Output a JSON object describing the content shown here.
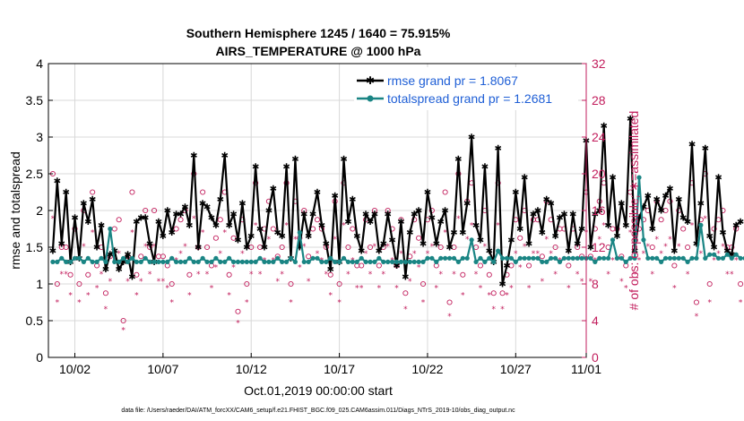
{
  "chart_data": {
    "type": "line",
    "title_line1": "Southern Hemisphere 1245 / 1640 = 75.915%",
    "title_line2": "AIRS_TEMPERATURE @ 1000 hPa",
    "xlabel": "Oct.01,2019 00:00:00 start",
    "ylabel_left": "rmse and totalspread",
    "ylabel_right": "# of obs: o=possible; ∗=assimilated",
    "footnote": "data file: /Users/raeder/DAI/ATM_forcXX/CAM6_setup/f.e21.FHIST_BGC.f09_025.CAM6assim.011/Diags_NTrS_2019-10/obs_diag_output.nc",
    "x_range_days": [
      0.5,
      31.0
    ],
    "x_ticks": [
      {
        "day": 2,
        "label": "10/02"
      },
      {
        "day": 7,
        "label": "10/07"
      },
      {
        "day": 12,
        "label": "10/12"
      },
      {
        "day": 17,
        "label": "10/17"
      },
      {
        "day": 22,
        "label": "10/22"
      },
      {
        "day": 27,
        "label": "10/27"
      },
      {
        "day": 31,
        "label": "11/01"
      }
    ],
    "ylim_left": [
      0,
      4
    ],
    "y_ticks_left": [
      "0",
      "0.5",
      "1",
      "1.5",
      "2",
      "2.5",
      "3",
      "3.5",
      "4"
    ],
    "ylim_right": [
      0,
      32
    ],
    "y_ticks_right": [
      "0",
      "4",
      "8",
      "12",
      "16",
      "20",
      "24",
      "28",
      "32"
    ],
    "legend": [
      {
        "label": "rmse grand pr = 1.8067",
        "color": "#000000"
      },
      {
        "label": "totalspread grand pr = 1.2681",
        "color": "#1a8584"
      }
    ],
    "time_step_days": 0.25,
    "start_day": 0.75,
    "series": [
      {
        "name": "rmse",
        "color": "#000000",
        "marker": "star",
        "values": [
          1.45,
          2.4,
          1.55,
          2.25,
          1.3,
          1.9,
          1.35,
          2.1,
          1.85,
          2.15,
          1.5,
          1.8,
          1.2,
          1.4,
          1.45,
          1.2,
          1.3,
          1.4,
          1.1,
          1.85,
          1.9,
          1.9,
          1.55,
          1.3,
          1.85,
          1.65,
          2.0,
          1.7,
          1.95,
          1.95,
          2.05,
          1.8,
          2.75,
          1.5,
          2.1,
          2.05,
          1.9,
          1.8,
          2.15,
          2.75,
          1.8,
          1.95,
          1.6,
          2.1,
          1.5,
          1.65,
          2.6,
          1.75,
          1.5,
          2.0,
          2.3,
          1.7,
          1.65,
          2.6,
          1.35,
          2.7,
          1.5,
          1.95,
          1.65,
          1.95,
          2.25,
          1.8,
          1.55,
          1.2,
          2.2,
          1.3,
          2.7,
          1.85,
          2.15,
          1.65,
          1.45,
          1.95,
          1.85,
          1.95,
          1.45,
          1.55,
          1.95,
          1.6,
          1.25,
          1.85,
          1.1,
          1.7,
          1.95,
          2.0,
          1.55,
          2.25,
          1.9,
          1.55,
          1.85,
          2.0,
          1.5,
          1.7,
          2.7,
          1.7,
          2.1,
          3.0,
          1.8,
          1.6,
          2.6,
          1.45,
          1.3,
          2.85,
          1.0,
          1.25,
          1.6,
          2.25,
          1.75,
          2.45,
          1.55,
          1.95,
          2.0,
          1.7,
          2.15,
          2.1,
          1.65,
          1.9,
          1.95,
          1.45,
          1.95,
          1.55,
          1.75,
          2.95,
          1.5,
          1.95,
          2.0,
          3.15,
          1.8,
          2.45,
          1.65,
          2.1,
          1.8,
          3.25,
          1.45,
          1.9,
          2.05,
          2.2,
          1.75,
          2.15,
          2.0,
          2.2,
          2.3,
          1.45,
          2.15,
          1.9,
          1.85,
          2.9,
          1.55,
          2.1,
          2.85,
          1.65,
          1.5,
          2.45,
          1.7,
          1.45,
          1.4,
          1.8,
          1.85
        ]
      },
      {
        "name": "totalspread",
        "color": "#1a8584",
        "marker": "dot",
        "values": [
          1.3,
          1.3,
          1.35,
          1.3,
          1.3,
          1.35,
          1.35,
          1.3,
          1.35,
          1.3,
          1.3,
          1.35,
          1.3,
          1.75,
          1.3,
          1.3,
          1.35,
          1.3,
          1.35,
          1.3,
          1.3,
          1.35,
          1.3,
          1.3,
          1.3,
          1.3,
          1.3,
          1.35,
          1.3,
          1.3,
          1.3,
          1.35,
          1.3,
          1.3,
          1.35,
          1.3,
          1.3,
          1.35,
          1.3,
          1.3,
          1.35,
          1.3,
          1.3,
          1.3,
          1.3,
          1.3,
          1.3,
          1.35,
          1.3,
          1.3,
          1.3,
          1.35,
          1.3,
          1.3,
          1.35,
          1.3,
          1.7,
          1.3,
          1.3,
          1.35,
          1.35,
          1.3,
          1.3,
          1.35,
          1.3,
          1.3,
          1.35,
          1.3,
          1.3,
          1.3,
          1.35,
          1.3,
          1.3,
          1.3,
          1.35,
          1.3,
          1.3,
          1.3,
          1.3,
          1.3,
          1.3,
          1.3,
          1.3,
          1.3,
          1.3,
          1.35,
          1.35,
          1.3,
          1.35,
          1.35,
          1.35,
          1.35,
          1.3,
          1.35,
          1.35,
          1.6,
          1.3,
          1.35,
          1.3,
          1.35,
          1.3,
          1.45,
          1.35,
          1.35,
          1.35,
          1.3,
          1.35,
          1.35,
          1.35,
          1.35,
          1.35,
          1.3,
          1.3,
          1.35,
          1.35,
          1.3,
          1.35,
          1.35,
          1.35,
          1.35,
          1.35,
          1.35,
          1.35,
          1.3,
          1.35,
          1.35,
          1.35,
          1.6,
          1.35,
          1.35,
          1.3,
          1.35,
          1.35,
          2.45,
          1.6,
          1.35,
          1.35,
          1.35,
          1.3,
          1.35,
          1.35,
          1.35,
          1.35,
          1.35,
          1.3,
          1.35,
          1.35,
          1.8,
          1.35,
          1.4,
          1.4,
          1.35,
          1.35,
          1.4,
          1.35,
          1.4,
          1.35,
          1.35,
          1.4
        ]
      }
    ],
    "obs_possible": [
      20,
      8,
      12,
      12,
      9,
      14,
      8,
      16,
      9,
      18,
      10,
      12,
      7,
      11,
      14,
      15,
      4,
      11,
      18,
      9,
      11,
      16,
      12,
      16,
      11,
      11,
      10,
      8,
      14,
      15,
      16,
      9,
      20,
      12,
      18,
      12,
      10,
      13,
      15,
      18,
      9,
      13,
      5,
      15,
      8,
      12,
      19,
      12,
      14,
      17,
      14,
      11,
      12,
      19,
      8,
      17,
      13,
      16,
      11,
      14,
      15,
      14,
      12,
      9,
      17,
      8,
      19,
      12,
      14,
      10,
      10,
      15,
      12,
      16,
      10,
      12,
      16,
      14,
      10,
      15,
      7,
      11,
      15,
      13,
      8,
      15,
      16,
      10,
      12,
      18,
      6,
      12,
      20,
      9,
      17,
      19,
      12,
      10,
      16,
      9,
      7,
      19,
      7,
      9,
      10,
      15,
      13,
      16,
      10,
      15,
      15,
      11,
      17,
      15,
      12,
      14,
      14,
      10,
      14,
      12,
      11,
      18,
      11,
      14,
      17,
      19,
      12,
      14,
      14,
      11,
      10,
      18,
      12,
      14,
      15,
      16,
      12,
      17,
      15,
      16,
      17,
      10,
      16,
      14,
      12,
      19,
      6,
      15,
      20,
      8,
      14,
      15,
      16,
      12,
      12,
      14,
      8
    ]
  }
}
